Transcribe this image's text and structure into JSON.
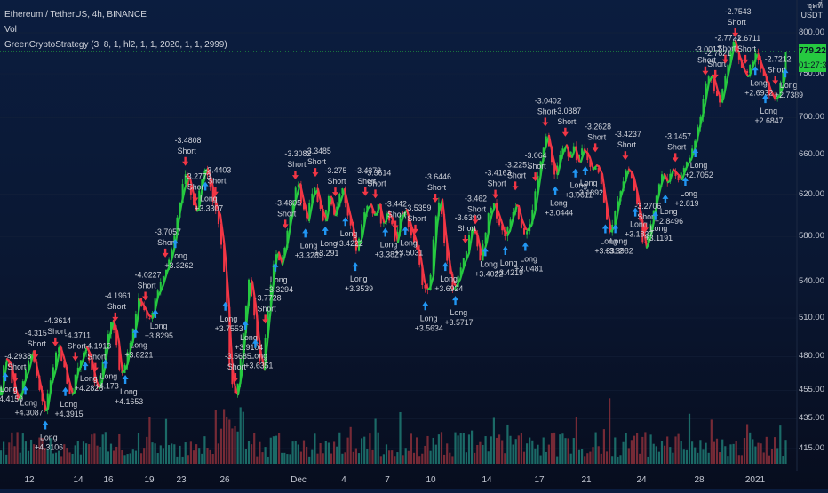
{
  "legend": {
    "symbol": "Ethereum / TetherUS, 4h, BINANCE",
    "indicator1": "Vol",
    "indicator2": "GreenCryptoStrategy (3, 8, 1, hl2, 1, 1, 2020, 1, 1, 2999)"
  },
  "price_axis": {
    "title_line1": "ชุดที่",
    "title_line2": "USDT",
    "labels": [
      "800.00",
      "750.00",
      "700.00",
      "660.00",
      "620.00",
      "580.00",
      "540.00",
      "510.00",
      "480.00",
      "455.00",
      "435.00",
      "415.00"
    ],
    "last_price": "779.22",
    "countdown": "01:27:37"
  },
  "colors": {
    "up_candle": "#26c940",
    "down_candle": "#f23645",
    "vol_up": "#1f7a73",
    "vol_down": "#8a2f3a",
    "long_arrow": "#2196f3",
    "short_arrow": "#f23645",
    "hline": "#26c940"
  },
  "chart_data": {
    "type": "candlestick",
    "symbol": "ETH/USDT",
    "timeframe": "4h",
    "exchange": "BINANCE",
    "y_scale": "log",
    "ylim": [
      405,
      825
    ],
    "x_tick_labels": [
      "12",
      "14",
      "16",
      "19",
      "23",
      "26",
      "Dec",
      "4",
      "7",
      "10",
      "14",
      "17",
      "21",
      "24",
      "28",
      "2021"
    ],
    "close_path": [
      [
        0,
        452
      ],
      [
        5,
        478
      ],
      [
        10,
        475
      ],
      [
        15,
        456
      ],
      [
        20,
        447
      ],
      [
        25,
        461
      ],
      [
        30,
        470
      ],
      [
        35,
        484
      ],
      [
        40,
        468
      ],
      [
        45,
        452
      ],
      [
        50,
        438
      ],
      [
        55,
        459
      ],
      [
        60,
        470
      ],
      [
        65,
        488
      ],
      [
        70,
        477
      ],
      [
        75,
        462
      ],
      [
        80,
        450
      ],
      [
        85,
        468
      ],
      [
        90,
        476
      ],
      [
        95,
        487
      ],
      [
        100,
        480
      ],
      [
        105,
        463
      ],
      [
        110,
        455
      ],
      [
        115,
        471
      ],
      [
        120,
        494
      ],
      [
        125,
        508
      ],
      [
        130,
        497
      ],
      [
        135,
        468
      ],
      [
        140,
        472
      ],
      [
        145,
        488
      ],
      [
        150,
        500
      ],
      [
        155,
        525
      ],
      [
        160,
        519
      ],
      [
        165,
        512
      ],
      [
        170,
        510
      ],
      [
        175,
        528
      ],
      [
        180,
        535
      ],
      [
        185,
        548
      ],
      [
        190,
        558
      ],
      [
        195,
        575
      ],
      [
        200,
        605
      ],
      [
        205,
        625
      ],
      [
        210,
        640
      ],
      [
        215,
        620
      ],
      [
        220,
        600
      ],
      [
        225,
        628
      ],
      [
        230,
        648
      ],
      [
        235,
        635
      ],
      [
        240,
        612
      ],
      [
        245,
        600
      ],
      [
        250,
        570
      ],
      [
        255,
        520
      ],
      [
        258,
        475
      ],
      [
        262,
        455
      ],
      [
        265,
        452
      ],
      [
        270,
        470
      ],
      [
        275,
        510
      ],
      [
        280,
        545
      ],
      [
        285,
        520
      ],
      [
        290,
        485
      ],
      [
        295,
        470
      ],
      [
        300,
        505
      ],
      [
        305,
        540
      ],
      [
        310,
        568
      ],
      [
        315,
        555
      ],
      [
        320,
        570
      ],
      [
        325,
        595
      ],
      [
        330,
        615
      ],
      [
        335,
        630
      ],
      [
        340,
        610
      ],
      [
        345,
        595
      ],
      [
        350,
        618
      ],
      [
        355,
        625
      ],
      [
        360,
        605
      ],
      [
        365,
        595
      ],
      [
        370,
        620
      ],
      [
        375,
        600
      ],
      [
        380,
        612
      ],
      [
        385,
        625
      ],
      [
        390,
        605
      ],
      [
        395,
        588
      ],
      [
        400,
        568
      ],
      [
        405,
        580
      ],
      [
        410,
        605
      ],
      [
        415,
        610
      ],
      [
        420,
        598
      ],
      [
        425,
        610
      ],
      [
        430,
        590
      ],
      [
        435,
        603
      ],
      [
        440,
        595
      ],
      [
        445,
        575
      ],
      [
        450,
        598
      ],
      [
        455,
        605
      ],
      [
        460,
        590
      ],
      [
        465,
        578
      ],
      [
        470,
        565
      ],
      [
        475,
        540
      ],
      [
        480,
        532
      ],
      [
        485,
        545
      ],
      [
        490,
        600
      ],
      [
        495,
        615
      ],
      [
        500,
        575
      ],
      [
        505,
        548
      ],
      [
        510,
        535
      ],
      [
        515,
        542
      ],
      [
        520,
        555
      ],
      [
        525,
        565
      ],
      [
        530,
        590
      ],
      [
        535,
        580
      ],
      [
        540,
        560
      ],
      [
        545,
        575
      ],
      [
        550,
        600
      ],
      [
        555,
        610
      ],
      [
        560,
        598
      ],
      [
        565,
        585
      ],
      [
        570,
        582
      ],
      [
        575,
        598
      ],
      [
        580,
        612
      ],
      [
        585,
        595
      ],
      [
        590,
        585
      ],
      [
        595,
        590
      ],
      [
        600,
        605
      ],
      [
        605,
        635
      ],
      [
        610,
        665
      ],
      [
        615,
        680
      ],
      [
        620,
        655
      ],
      [
        625,
        640
      ],
      [
        630,
        660
      ],
      [
        635,
        670
      ],
      [
        640,
        655
      ],
      [
        645,
        668
      ],
      [
        650,
        650
      ],
      [
        655,
        665
      ],
      [
        660,
        660
      ],
      [
        665,
        645
      ],
      [
        670,
        650
      ],
      [
        675,
        640
      ],
      [
        680,
        610
      ],
      [
        685,
        585
      ],
      [
        690,
        590
      ],
      [
        695,
        615
      ],
      [
        700,
        630
      ],
      [
        705,
        645
      ],
      [
        710,
        640
      ],
      [
        715,
        620
      ],
      [
        720,
        595
      ],
      [
        725,
        570
      ],
      [
        730,
        580
      ],
      [
        735,
        605
      ],
      [
        740,
        625
      ],
      [
        745,
        640
      ],
      [
        750,
        630
      ],
      [
        755,
        645
      ],
      [
        760,
        640
      ],
      [
        765,
        635
      ],
      [
        770,
        648
      ],
      [
        775,
        655
      ],
      [
        780,
        668
      ],
      [
        785,
        690
      ],
      [
        790,
        710
      ],
      [
        795,
        740
      ],
      [
        800,
        750
      ],
      [
        805,
        730
      ],
      [
        810,
        715
      ],
      [
        815,
        740
      ],
      [
        820,
        765
      ],
      [
        825,
        790
      ],
      [
        830,
        770
      ],
      [
        835,
        755
      ],
      [
        840,
        745
      ],
      [
        845,
        760
      ],
      [
        850,
        775
      ],
      [
        855,
        760
      ],
      [
        860,
        745
      ],
      [
        865,
        730
      ],
      [
        870,
        720
      ],
      [
        875,
        725
      ],
      [
        880,
        740
      ],
      [
        885,
        779
      ]
    ],
    "signals": [
      {
        "type": "Long",
        "value": "+4.4159"
      },
      {
        "type": "Short",
        "value": "-4.2938"
      },
      {
        "type": "Long",
        "value": "+4.3087"
      },
      {
        "type": "Short",
        "value": "-4.315"
      },
      {
        "type": "Long",
        "value": "+4.3106"
      },
      {
        "type": "Short",
        "value": "-4.3614"
      },
      {
        "type": "Long",
        "value": "+4.3915"
      },
      {
        "type": "Short",
        "value": "-4.3711"
      },
      {
        "type": "Long",
        "value": "+4.2825"
      },
      {
        "type": "Short",
        "value": "-4.1913"
      },
      {
        "type": "Long",
        "value": "+4.173"
      },
      {
        "type": "Short",
        "value": "-4.1961"
      },
      {
        "type": "Long",
        "value": "+4.1653"
      },
      {
        "type": "Long",
        "value": "+3.8221"
      },
      {
        "type": "Short",
        "value": "-4.0227"
      },
      {
        "type": "Long",
        "value": "+3.8295"
      },
      {
        "type": "Short",
        "value": "-3.7057"
      },
      {
        "type": "Long",
        "value": "+3.3262"
      },
      {
        "type": "Short",
        "value": "-3.4808"
      },
      {
        "type": "Short",
        "value": "-3.2773"
      },
      {
        "type": "Long",
        "value": "+3.3307"
      },
      {
        "type": "Short",
        "value": "-3.4403"
      },
      {
        "type": "Long",
        "value": "+3.7553"
      },
      {
        "type": "Short",
        "value": "-3.5685"
      },
      {
        "type": "Long",
        "value": "+3.9104"
      },
      {
        "type": "Long",
        "value": "+3.6351"
      },
      {
        "type": "Short",
        "value": "-3.7728"
      },
      {
        "type": "Long",
        "value": "+3.3294"
      },
      {
        "type": "Short",
        "value": "-3.4805"
      },
      {
        "type": "Short",
        "value": "-3.3082"
      },
      {
        "type": "Long",
        "value": "+3.3289"
      },
      {
        "type": "Short",
        "value": "-3.3485"
      },
      {
        "type": "Long",
        "value": "+3.291"
      },
      {
        "type": "Short",
        "value": "-3.275"
      },
      {
        "type": "Long",
        "value": "+3.4222"
      },
      {
        "type": "Long",
        "value": "+3.3539"
      },
      {
        "type": "Short",
        "value": "-3.4378"
      },
      {
        "type": "Short",
        "value": "-3.3614"
      },
      {
        "type": "Long",
        "value": "+3.3827"
      },
      {
        "type": "Short",
        "value": "-3.442"
      },
      {
        "type": "Long",
        "value": "+3.5031"
      },
      {
        "type": "Short",
        "value": "-3.5359"
      },
      {
        "type": "Long",
        "value": "+3.5634"
      },
      {
        "type": "Short",
        "value": "-3.6446"
      },
      {
        "type": "Long",
        "value": "+3.6924"
      },
      {
        "type": "Long",
        "value": "+3.5717"
      },
      {
        "type": "Short",
        "value": "-3.6399"
      },
      {
        "type": "Short",
        "value": "-3.462"
      },
      {
        "type": "Long",
        "value": "+3.4022"
      },
      {
        "type": "Short",
        "value": "-3.4163"
      },
      {
        "type": "Long",
        "value": "+3.4219"
      },
      {
        "type": "Short",
        "value": "-3.2251"
      },
      {
        "type": "Long",
        "value": "+3.0481"
      },
      {
        "type": "Short",
        "value": "-3.064"
      },
      {
        "type": "Short",
        "value": "-3.0402"
      },
      {
        "type": "Long",
        "value": "+3.0444"
      },
      {
        "type": "Short",
        "value": "-3.0887"
      },
      {
        "type": "Long",
        "value": "+3.0611"
      },
      {
        "type": "Long",
        "value": "+3.1892"
      },
      {
        "type": "Short",
        "value": "-3.2628"
      },
      {
        "type": "Long",
        "value": "+3.3312"
      },
      {
        "type": "Long",
        "value": "+3.3982"
      },
      {
        "type": "Short",
        "value": "-3.4237"
      },
      {
        "type": "Long",
        "value": "+3.1837"
      },
      {
        "type": "Short",
        "value": "-3.2706"
      },
      {
        "type": "Long",
        "value": "+3.1191"
      },
      {
        "type": "Long",
        "value": "+2.8496"
      },
      {
        "type": "Short",
        "value": "-3.1457"
      },
      {
        "type": "Long",
        "value": "+2.819"
      },
      {
        "type": "Long",
        "value": "+2.7052"
      },
      {
        "type": "Short",
        "value": "-3.0017"
      },
      {
        "type": "Short",
        "value": "-2.7821"
      },
      {
        "type": "Short",
        "value": "-2.7721"
      },
      {
        "type": "Short",
        "value": "-2.7543"
      },
      {
        "type": "Short",
        "value": "-2.6711"
      },
      {
        "type": "Long",
        "value": "+2.6932"
      },
      {
        "type": "Long",
        "value": "+2.6847"
      },
      {
        "type": "Short",
        "value": "-2.7212"
      },
      {
        "type": "Long",
        "value": "+2.7389"
      }
    ]
  }
}
